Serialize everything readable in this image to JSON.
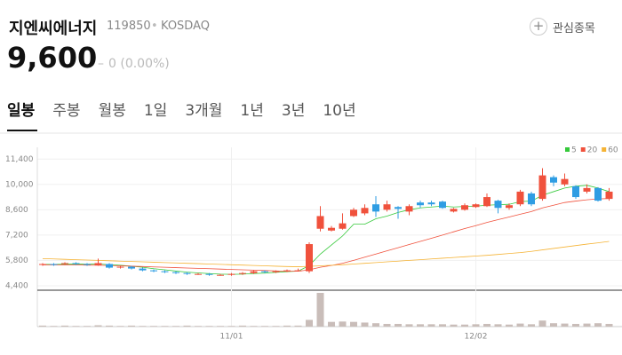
{
  "header": {
    "name": "지엔씨에너지",
    "code": "119850",
    "market": "KOSDAQ",
    "price": "9,600",
    "change": "0 (0.00%)",
    "watch": "관심종목"
  },
  "tabs": [
    "일봉",
    "주봉",
    "월봉",
    "1일",
    "3개월",
    "1년",
    "3년",
    "10년"
  ],
  "chart_data": {
    "type": "candlestick",
    "categories": [
      null,
      null,
      null,
      null,
      null,
      null,
      null,
      null,
      null,
      null,
      null,
      null,
      null,
      null,
      null,
      null,
      null,
      "11/01",
      null,
      null,
      null,
      null,
      null,
      null,
      null,
      null,
      null,
      null,
      null,
      null,
      null,
      null,
      null,
      null,
      null,
      null,
      null,
      null,
      null,
      "12/02",
      null,
      null,
      null,
      null,
      null,
      null,
      null,
      null,
      null,
      null,
      null,
      null
    ],
    "open": [
      5550,
      5600,
      5600,
      5650,
      5600,
      5550,
      5600,
      5400,
      5450,
      5350,
      5250,
      5200,
      5150,
      5100,
      5050,
      5050,
      5000,
      5000,
      5050,
      5100,
      5200,
      5150,
      5200,
      5250,
      5200,
      7550,
      7450,
      7550,
      8250,
      8400,
      8900,
      8600,
      8750,
      8500,
      9000,
      9000,
      9050,
      8500,
      8600,
      8750,
      8800,
      9100,
      8700,
      8900,
      9500,
      9200,
      10400,
      10000,
      9900,
      9600,
      9800,
      9200
    ],
    "high": [
      5650,
      5650,
      5700,
      5700,
      5650,
      5900,
      5650,
      5500,
      5500,
      5400,
      5300,
      5250,
      5200,
      5150,
      5100,
      5100,
      5050,
      5100,
      5150,
      5250,
      5250,
      5250,
      5300,
      5350,
      6800,
      8800,
      7700,
      8400,
      8700,
      8900,
      9350,
      9100,
      8800,
      8900,
      9100,
      9100,
      9100,
      8700,
      8950,
      8950,
      9500,
      9150,
      8950,
      9700,
      9600,
      10900,
      10500,
      10600,
      9950,
      10000,
      9850,
      9800
    ],
    "low": [
      5500,
      5500,
      5550,
      5550,
      5500,
      5500,
      5350,
      5350,
      5300,
      5200,
      5150,
      5100,
      5050,
      5000,
      5000,
      4950,
      4950,
      4950,
      5000,
      5050,
      5100,
      5100,
      5150,
      5200,
      5100,
      7400,
      7400,
      7500,
      8200,
      8300,
      8200,
      8500,
      8100,
      8300,
      8700,
      8800,
      8650,
      8450,
      8550,
      8700,
      8750,
      8400,
      8600,
      8800,
      8800,
      9100,
      9900,
      9900,
      9200,
      9500,
      9050,
      9100
    ],
    "close": [
      5600,
      5550,
      5650,
      5600,
      5550,
      5650,
      5400,
      5450,
      5350,
      5250,
      5200,
      5150,
      5100,
      5050,
      5050,
      5000,
      5000,
      5050,
      5100,
      5200,
      5150,
      5200,
      5250,
      5250,
      6700,
      8250,
      7600,
      7850,
      8600,
      8700,
      8500,
      8900,
      8650,
      8800,
      8850,
      8900,
      8700,
      8650,
      8850,
      8900,
      9300,
      8700,
      8850,
      9600,
      8900,
      10500,
      10100,
      10300,
      9300,
      9800,
      9100,
      9600
    ],
    "volume": [
      3,
      2,
      3,
      2,
      2,
      4,
      3,
      2,
      3,
      2,
      2,
      2,
      2,
      3,
      2,
      2,
      2,
      2,
      3,
      2,
      2,
      2,
      3,
      3,
      20,
      100,
      14,
      15,
      14,
      12,
      10,
      8,
      8,
      7,
      7,
      7,
      7,
      6,
      6,
      7,
      8,
      7,
      6,
      9,
      7,
      18,
      10,
      9,
      8,
      9,
      10,
      8
    ],
    "up_color": "#f0513c",
    "down_color": "#2f9de3",
    "volume_color": "#c9bdb9",
    "series": [
      {
        "name": "5",
        "color": "#35c93a",
        "values": [
          5580,
          5580,
          5590,
          5600,
          5590,
          5600,
          5570,
          5530,
          5480,
          5420,
          5340,
          5280,
          5210,
          5150,
          5110,
          5070,
          5040,
          5030,
          5040,
          5070,
          5100,
          5140,
          5180,
          5210,
          5510,
          6150,
          6650,
          7150,
          7800,
          7800,
          8100,
          8250,
          8450,
          8600,
          8700,
          8750,
          8800,
          8750,
          8780,
          8800,
          8850,
          8880,
          8900,
          9050,
          9080,
          9400,
          9600,
          9800,
          9900,
          9950,
          9800,
          9600
        ]
      },
      {
        "name": "20",
        "color": "#f0513c",
        "values": [
          5550,
          5550,
          5550,
          5550,
          5540,
          5530,
          5520,
          5500,
          5480,
          5460,
          5440,
          5420,
          5400,
          5380,
          5360,
          5340,
          5320,
          5300,
          5280,
          5260,
          5240,
          5220,
          5200,
          5200,
          5280,
          5420,
          5520,
          5640,
          5800,
          5980,
          6150,
          6330,
          6500,
          6680,
          6850,
          7020,
          7200,
          7380,
          7560,
          7720,
          7900,
          8050,
          8200,
          8350,
          8500,
          8700,
          8850,
          9000,
          9080,
          9150,
          9200,
          9220
        ]
      },
      {
        "name": "60",
        "color": "#f5b335",
        "values": [
          5900,
          5880,
          5860,
          5840,
          5820,
          5800,
          5780,
          5760,
          5740,
          5720,
          5700,
          5680,
          5660,
          5640,
          5620,
          5600,
          5580,
          5560,
          5540,
          5520,
          5500,
          5480,
          5460,
          5450,
          5470,
          5500,
          5530,
          5560,
          5600,
          5640,
          5680,
          5720,
          5760,
          5800,
          5840,
          5880,
          5920,
          5960,
          6000,
          6040,
          6080,
          6130,
          6180,
          6230,
          6300,
          6380,
          6460,
          6540,
          6620,
          6700,
          6770,
          6850
        ]
      }
    ],
    "ylim": [
      4250,
      12050
    ],
    "yticks": [
      {
        "value": 4400,
        "label": "4,400"
      },
      {
        "value": 5800,
        "label": "5,800"
      },
      {
        "value": 7200,
        "label": "7,200"
      },
      {
        "value": 8600,
        "label": "8,600"
      },
      {
        "value": 10000,
        "label": "10,000"
      },
      {
        "value": 11400,
        "label": "11,400"
      }
    ],
    "grid": true
  }
}
